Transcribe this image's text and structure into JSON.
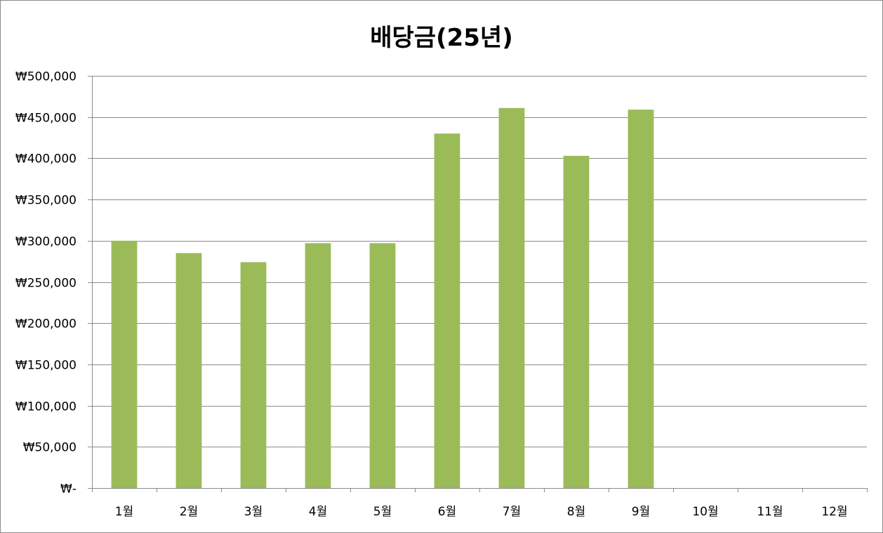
{
  "chart_data": {
    "type": "bar",
    "title": "배당금(25년)",
    "xlabel": "",
    "ylabel": "",
    "categories": [
      "1월",
      "2월",
      "3월",
      "4월",
      "5월",
      "6월",
      "7월",
      "8월",
      "9월",
      "10월",
      "11월",
      "12월"
    ],
    "series": [
      {
        "color": "#9bbb59",
        "values": [
          300000,
          285000,
          274000,
          297000,
          297000,
          430000,
          461000,
          403000,
          459000,
          null,
          null,
          null
        ]
      }
    ],
    "ylim": [
      0,
      500000
    ],
    "yticks": [
      0,
      50000,
      100000,
      150000,
      200000,
      250000,
      300000,
      350000,
      400000,
      450000,
      500000
    ],
    "ytick_labels": [
      "₩-",
      "₩50,000",
      "₩100,000",
      "₩150,000",
      "₩200,000",
      "₩250,000",
      "₩300,000",
      "₩350,000",
      "₩400,000",
      "₩450,000",
      "₩500,000"
    ],
    "grid": true,
    "legend": "none",
    "colors": {
      "bar": "#9bbb59",
      "gridline": "#8c8c8c",
      "axis": "#8c8c8c"
    }
  }
}
